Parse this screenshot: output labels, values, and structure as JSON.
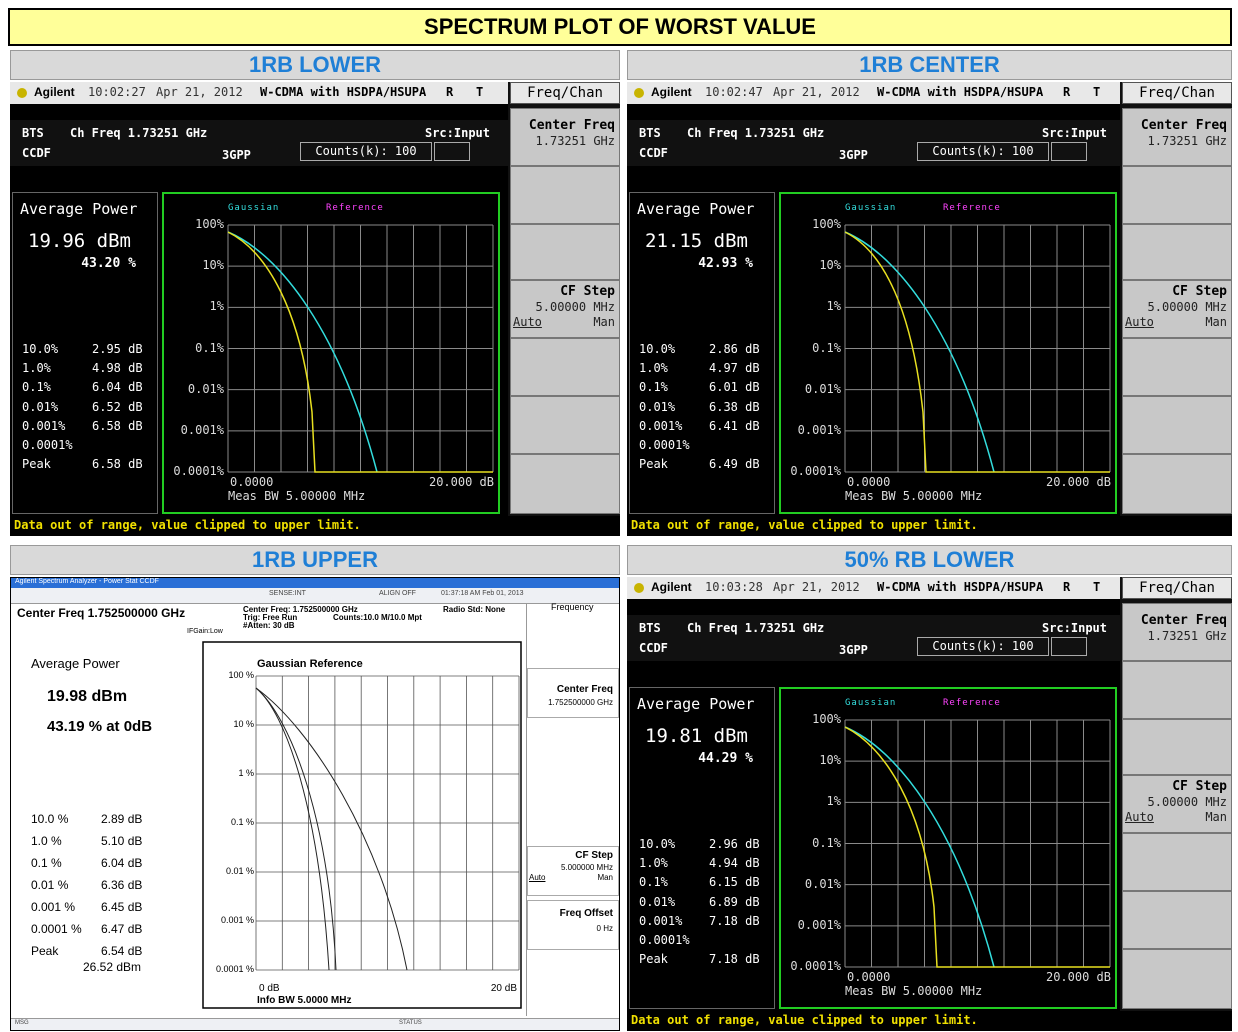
{
  "title": "SPECTRUM PLOT OF WORST VALUE",
  "panels": [
    {
      "heading": "1RB LOWER",
      "screen": {
        "brand": "Agilent",
        "time": "10:02:27",
        "date": "Apr 21, 2012",
        "mode": "W-CDMA with HSDPA/HSUPA",
        "flags": [
          "R",
          "T"
        ],
        "menu": "Freq/Chan",
        "radio": "BTS",
        "ch_freq": "Ch Freq 1.73251 GHz",
        "source": "Src:Input",
        "measurement": "CCDF",
        "standard": "3GPP",
        "counts": "Counts(k): 100",
        "avg_label": "Average Power",
        "avg_power": "19.96 dBm",
        "avg_percent": "43.20 %",
        "rows": [
          {
            "label": "10.0%",
            "value": "2.95 dB"
          },
          {
            "label": "1.0%",
            "value": "4.98 dB"
          },
          {
            "label": "0.1%",
            "value": "6.04 dB"
          },
          {
            "label": "0.01%",
            "value": "6.52 dB"
          },
          {
            "label": "0.001%",
            "value": "6.58 dB"
          },
          {
            "label": "0.0001%"
          },
          {
            "label": "Peak",
            "value": "6.58 dB"
          }
        ],
        "legend": [
          "Gaussian",
          "Reference"
        ],
        "yticks": [
          "100%",
          "10%",
          "1%",
          "0.1%",
          "0.01%",
          "0.001%",
          "0.0001%"
        ],
        "x_start": "0.0000",
        "x_end": "20.000 dB",
        "bandwidth": "Meas BW 5.00000 MHz",
        "softkeys": [
          {
            "title": "Center Freq",
            "value": "1.73251 GHz"
          },
          {
            "title": "CF Step",
            "value": "5.00000 MHz",
            "options": [
              "Auto",
              "Man"
            ]
          }
        ],
        "message": "Data out of range, value clipped to upper limit."
      }
    },
    {
      "heading": "1RB CENTER",
      "screen": {
        "brand": "Agilent",
        "time": "10:02:47",
        "date": "Apr 21, 2012",
        "mode": "W-CDMA with HSDPA/HSUPA",
        "flags": [
          "R",
          "T"
        ],
        "menu": "Freq/Chan",
        "radio": "BTS",
        "ch_freq": "Ch Freq 1.73251 GHz",
        "source": "Src:Input",
        "measurement": "CCDF",
        "standard": "3GPP",
        "counts": "Counts(k): 100",
        "avg_label": "Average Power",
        "avg_power": "21.15 dBm",
        "avg_percent": "42.93 %",
        "rows": [
          {
            "label": "10.0%",
            "value": "2.86 dB"
          },
          {
            "label": "1.0%",
            "value": "4.97 dB"
          },
          {
            "label": "0.1%",
            "value": "6.01 dB"
          },
          {
            "label": "0.01%",
            "value": "6.38 dB"
          },
          {
            "label": "0.001%",
            "value": "6.41 dB"
          },
          {
            "label": "0.0001%"
          },
          {
            "label": "Peak",
            "value": "6.49 dB"
          }
        ],
        "legend": [
          "Gaussian",
          "Reference"
        ],
        "yticks": [
          "100%",
          "10%",
          "1%",
          "0.1%",
          "0.01%",
          "0.001%",
          "0.0001%"
        ],
        "x_start": "0.0000",
        "x_end": "20.000 dB",
        "bandwidth": "Meas BW 5.00000 MHz",
        "softkeys": [
          {
            "title": "Center Freq",
            "value": "1.73251 GHz"
          },
          {
            "title": "CF Step",
            "value": "5.00000 MHz",
            "options": [
              "Auto",
              "Man"
            ]
          }
        ],
        "message": "Data out of range, value clipped to upper limit."
      }
    },
    {
      "heading": "1RB UPPER",
      "screen": {
        "window_title": "Agilent Spectrum Analyzer - Power Stat CCDF",
        "sense": "SENSE:INT",
        "align": "ALIGN OFF",
        "timestamp": "01:37:18 AM Feb 01, 2013",
        "center_freq": "Center Freq 1.752500000 GHz",
        "settings": [
          "Center Freq: 1.752500000 GHz",
          "Trig: Free Run",
          "#Atten: 30 dB"
        ],
        "counts": "Counts:10.0 M/10.0 Mpt",
        "radio_std": "Radio Std: None",
        "if_gain": "IFGain:Low",
        "menu": "Frequency",
        "avg_label": "Average Power",
        "avg_power": "19.98 dBm",
        "avg_percent": "43.19 % at 0dB",
        "rows": [
          {
            "label": "10.0 %",
            "value": "2.89 dB"
          },
          {
            "label": "1.0 %",
            "value": "5.10 dB"
          },
          {
            "label": "0.1 %",
            "value": "6.04 dB"
          },
          {
            "label": "0.01 %",
            "value": "6.36 dB"
          },
          {
            "label": "0.001 %",
            "value": "6.45 dB"
          },
          {
            "label": "0.0001 %",
            "value": "6.47 dB"
          },
          {
            "label": "Peak",
            "value": "6.54 dB"
          }
        ],
        "peak_power": "26.52 dBm",
        "legend": "Gaussian Reference",
        "yticks": [
          "100 %",
          "10 %",
          "1 %",
          "0.1 %",
          "0.01 %",
          "0.001 %",
          "0.0001 %"
        ],
        "x_start": "0 dB",
        "x_end": "20 dB",
        "bandwidth": "Info BW 5.0000 MHz",
        "softkeys": [
          {
            "title": "Center Freq",
            "value": "1.752500000 GHz"
          },
          {
            "title": "CF Step",
            "value": "5.000000 MHz",
            "options": [
              "Auto",
              "Man"
            ]
          },
          {
            "title": "Freq Offset",
            "value": "0 Hz"
          }
        ],
        "msg": "MSG",
        "status": "STATUS"
      }
    },
    {
      "heading": "50% RB LOWER",
      "screen": {
        "brand": "Agilent",
        "time": "10:03:28",
        "date": "Apr 21, 2012",
        "mode": "W-CDMA with HSDPA/HSUPA",
        "flags": [
          "R",
          "T"
        ],
        "menu": "Freq/Chan",
        "radio": "BTS",
        "ch_freq": "Ch Freq 1.73251 GHz",
        "source": "Src:Input",
        "measurement": "CCDF",
        "standard": "3GPP",
        "counts": "Counts(k): 100",
        "avg_label": "Average Power",
        "avg_power": "19.81 dBm",
        "avg_percent": "44.29 %",
        "rows": [
          {
            "label": "10.0%",
            "value": "2.96 dB"
          },
          {
            "label": "1.0%",
            "value": "4.94 dB"
          },
          {
            "label": "0.1%",
            "value": "6.15 dB"
          },
          {
            "label": "0.01%",
            "value": "6.89 dB"
          },
          {
            "label": "0.001%",
            "value": "7.18 dB"
          },
          {
            "label": "0.0001%"
          },
          {
            "label": "Peak",
            "value": "7.18 dB"
          }
        ],
        "legend": [
          "Gaussian",
          "Reference"
        ],
        "yticks": [
          "100%",
          "10%",
          "1%",
          "0.1%",
          "0.01%",
          "0.001%",
          "0.0001%"
        ],
        "x_start": "0.0000",
        "x_end": "20.000 dB",
        "bandwidth": "Meas BW 5.00000 MHz",
        "softkeys": [
          {
            "title": "Center Freq",
            "value": "1.73251 GHz"
          },
          {
            "title": "CF Step",
            "value": "5.00000 MHz",
            "options": [
              "Auto",
              "Man"
            ]
          }
        ],
        "message": "Data out of range, value clipped to upper limit."
      }
    }
  ]
}
